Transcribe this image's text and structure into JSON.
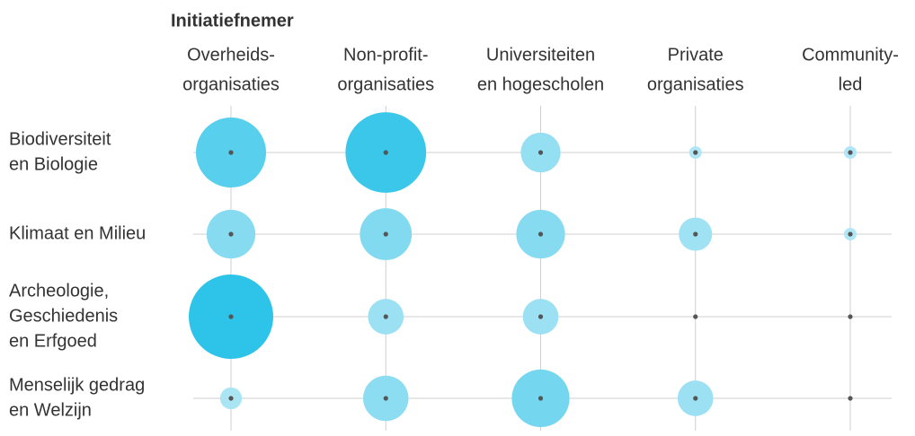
{
  "chart_data": {
    "type": "bubble-matrix",
    "title": "Initiatiefnemer",
    "categories": [
      [
        "Overheids-",
        "organisaties"
      ],
      [
        "Non-profit-",
        "organisaties"
      ],
      [
        "Universiteiten",
        "en hogescholen"
      ],
      [
        "Private",
        "organisaties"
      ],
      [
        "Community-",
        "led"
      ]
    ],
    "series": [
      {
        "name": [
          "Biodiversiteit",
          "en Biologie"
        ],
        "values": [
          31,
          41,
          10,
          1,
          1
        ]
      },
      {
        "name": [
          "Klimaat en Milieu"
        ],
        "values": [
          15,
          17,
          15,
          7,
          1
        ]
      },
      {
        "name": [
          "Archeologie,",
          "Geschiedenis",
          "en Erfgoed"
        ],
        "values": [
          45,
          8,
          8,
          0,
          0
        ]
      },
      {
        "name": [
          "Menselijk gedrag",
          "en Welzijn"
        ],
        "values": [
          3,
          13,
          21,
          8,
          0
        ]
      }
    ],
    "size_range": [
      0,
      45
    ],
    "colors": [
      "#b3e7f5",
      "#2ec4e9"
    ],
    "grid": true
  }
}
